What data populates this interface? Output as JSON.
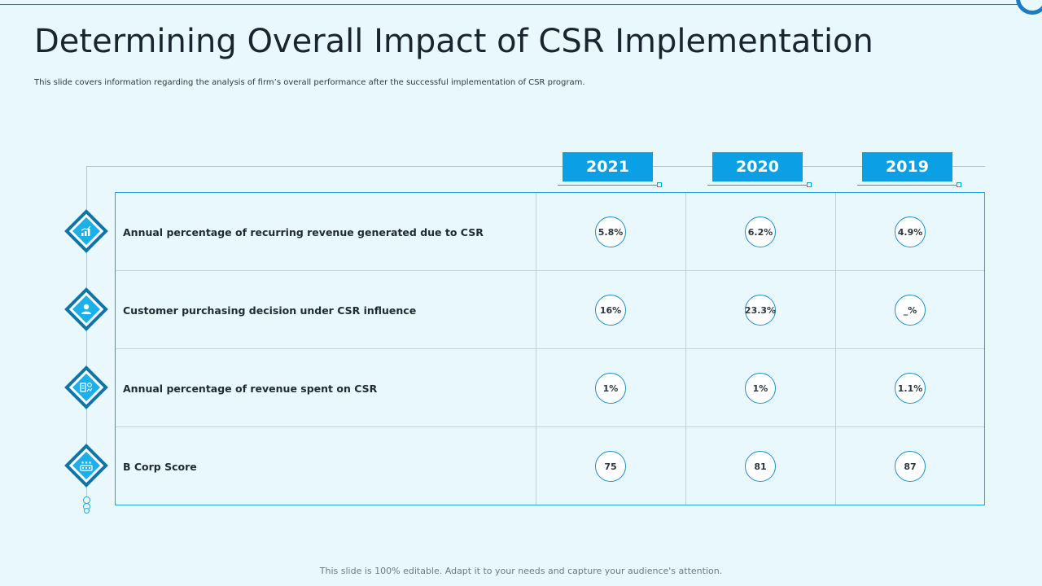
{
  "slide": {
    "title": "Determining Overall Impact of CSR Implementation",
    "subtitle": "This slide covers information regarding the analysis of firm’s overall performance after the successful implementation of CSR program.",
    "footer": "This slide is 100% editable. Adapt it to your needs and capture your audience's attention."
  },
  "years": [
    "2021",
    "2020",
    "2019"
  ],
  "rows": [
    {
      "label": "Annual percentage of recurring revenue generated due to CSR",
      "icon": "growth-chart-icon",
      "values": [
        "5.8%",
        "6.2%",
        "4.9%"
      ]
    },
    {
      "label": "Customer purchasing decision under CSR influence",
      "icon": "customer-icon",
      "values": [
        "16%",
        "23.3%",
        "_%"
      ]
    },
    {
      "label": "Annual percentage of revenue spent on CSR",
      "icon": "revenue-spend-icon",
      "values": [
        "1%",
        "1%",
        "1.1%"
      ]
    },
    {
      "label": "B Corp Score",
      "icon": "rating-score-icon",
      "values": [
        "75",
        "81",
        "87"
      ]
    }
  ],
  "colors": {
    "accent": "#0ba0e6",
    "dark_accent": "#0f74a8",
    "background": "#e9f8fc"
  }
}
